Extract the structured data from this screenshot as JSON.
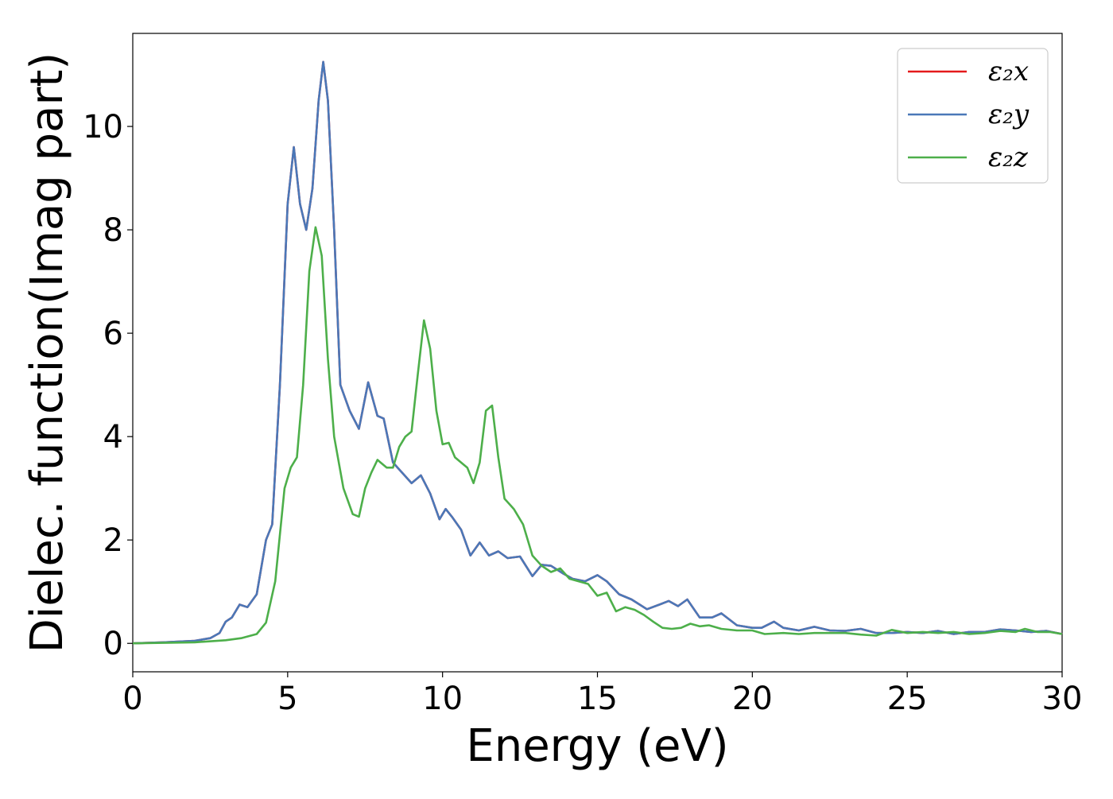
{
  "chart_data": {
    "type": "line",
    "xlabel": "Energy (eV)",
    "ylabel": "Dielec. function(Imag part)",
    "xlim": [
      0,
      30
    ],
    "ylim": [
      -0.55,
      11.8
    ],
    "xticks": [
      0,
      5,
      10,
      15,
      20,
      25,
      30
    ],
    "yticks": [
      0,
      2,
      4,
      6,
      8,
      10
    ],
    "grid": false,
    "legend_position": "top-right",
    "series": [
      {
        "name": "ε₂x",
        "color": "#e41a1c",
        "x": [
          0,
          1,
          2,
          2.5,
          2.8,
          3.0,
          3.2,
          3.45,
          3.7,
          4.0,
          4.3,
          4.5,
          4.75,
          5.0,
          5.2,
          5.4,
          5.6,
          5.8,
          6.0,
          6.15,
          6.3,
          6.5,
          6.7,
          7.0,
          7.3,
          7.6,
          7.9,
          8.1,
          8.4,
          8.7,
          9.0,
          9.3,
          9.6,
          9.9,
          10.1,
          10.3,
          10.6,
          10.9,
          11.2,
          11.5,
          11.8,
          12.1,
          12.5,
          12.9,
          13.2,
          13.5,
          13.9,
          14.2,
          14.6,
          15.0,
          15.3,
          15.7,
          16.1,
          16.6,
          17.0,
          17.3,
          17.6,
          17.9,
          18.3,
          18.7,
          19.0,
          19.5,
          20.0,
          20.3,
          20.7,
          21.0,
          21.5,
          22.0,
          22.5,
          23.0,
          23.5,
          24.0,
          24.5,
          25.0,
          25.5,
          26.0,
          26.5,
          27.0,
          27.5,
          28.0,
          28.5,
          29.0,
          29.5,
          30.0
        ],
        "values": [
          0.0,
          0.02,
          0.05,
          0.1,
          0.2,
          0.42,
          0.5,
          0.75,
          0.7,
          0.95,
          2.0,
          2.3,
          5.0,
          8.5,
          9.6,
          8.5,
          8.0,
          8.8,
          10.5,
          11.25,
          10.5,
          8.0,
          5.0,
          4.5,
          4.15,
          5.05,
          4.4,
          4.35,
          3.5,
          3.3,
          3.1,
          3.25,
          2.9,
          2.4,
          2.6,
          2.45,
          2.2,
          1.7,
          1.95,
          1.7,
          1.78,
          1.65,
          1.68,
          1.3,
          1.52,
          1.5,
          1.35,
          1.25,
          1.2,
          1.32,
          1.2,
          0.95,
          0.85,
          0.66,
          0.75,
          0.82,
          0.72,
          0.85,
          0.5,
          0.5,
          0.58,
          0.35,
          0.3,
          0.3,
          0.42,
          0.3,
          0.25,
          0.32,
          0.25,
          0.24,
          0.28,
          0.2,
          0.2,
          0.22,
          0.2,
          0.24,
          0.18,
          0.22,
          0.22,
          0.27,
          0.25,
          0.22,
          0.24,
          0.18
        ]
      },
      {
        "name": "ε₂y",
        "color": "#4a78b8",
        "x": [
          0,
          1,
          2,
          2.5,
          2.8,
          3.0,
          3.2,
          3.45,
          3.7,
          4.0,
          4.3,
          4.5,
          4.75,
          5.0,
          5.2,
          5.4,
          5.6,
          5.8,
          6.0,
          6.15,
          6.3,
          6.5,
          6.7,
          7.0,
          7.3,
          7.6,
          7.9,
          8.1,
          8.4,
          8.7,
          9.0,
          9.3,
          9.6,
          9.9,
          10.1,
          10.3,
          10.6,
          10.9,
          11.2,
          11.5,
          11.8,
          12.1,
          12.5,
          12.9,
          13.2,
          13.5,
          13.9,
          14.2,
          14.6,
          15.0,
          15.3,
          15.7,
          16.1,
          16.6,
          17.0,
          17.3,
          17.6,
          17.9,
          18.3,
          18.7,
          19.0,
          19.5,
          20.0,
          20.3,
          20.7,
          21.0,
          21.5,
          22.0,
          22.5,
          23.0,
          23.5,
          24.0,
          24.5,
          25.0,
          25.5,
          26.0,
          26.5,
          27.0,
          27.5,
          28.0,
          28.5,
          29.0,
          29.5,
          30.0
        ],
        "values": [
          0.0,
          0.02,
          0.05,
          0.1,
          0.2,
          0.42,
          0.5,
          0.75,
          0.7,
          0.95,
          2.0,
          2.3,
          5.0,
          8.5,
          9.6,
          8.5,
          8.0,
          8.8,
          10.5,
          11.25,
          10.5,
          8.0,
          5.0,
          4.5,
          4.15,
          5.05,
          4.4,
          4.35,
          3.5,
          3.3,
          3.1,
          3.25,
          2.9,
          2.4,
          2.6,
          2.45,
          2.2,
          1.7,
          1.95,
          1.7,
          1.78,
          1.65,
          1.68,
          1.3,
          1.52,
          1.5,
          1.35,
          1.25,
          1.2,
          1.32,
          1.2,
          0.95,
          0.85,
          0.66,
          0.75,
          0.82,
          0.72,
          0.85,
          0.5,
          0.5,
          0.58,
          0.35,
          0.3,
          0.3,
          0.42,
          0.3,
          0.25,
          0.32,
          0.25,
          0.24,
          0.28,
          0.2,
          0.2,
          0.22,
          0.2,
          0.24,
          0.18,
          0.22,
          0.22,
          0.27,
          0.25,
          0.22,
          0.24,
          0.18
        ]
      },
      {
        "name": "ε₂z",
        "color": "#4daf4a",
        "x": [
          0,
          2,
          3,
          3.5,
          4.0,
          4.3,
          4.6,
          4.9,
          5.1,
          5.3,
          5.5,
          5.7,
          5.9,
          6.1,
          6.3,
          6.5,
          6.8,
          7.1,
          7.3,
          7.5,
          7.7,
          7.9,
          8.0,
          8.2,
          8.4,
          8.6,
          8.8,
          9.0,
          9.2,
          9.4,
          9.6,
          9.8,
          10.0,
          10.2,
          10.4,
          10.6,
          10.8,
          11.0,
          11.2,
          11.4,
          11.6,
          11.8,
          12.0,
          12.3,
          12.6,
          12.9,
          13.2,
          13.5,
          13.8,
          14.1,
          14.4,
          14.7,
          15.0,
          15.3,
          15.6,
          15.9,
          16.2,
          16.5,
          16.8,
          17.1,
          17.4,
          17.7,
          18.0,
          18.3,
          18.6,
          19.0,
          19.5,
          20.0,
          20.4,
          21.0,
          21.5,
          22.0,
          22.5,
          23.0,
          23.5,
          24.0,
          24.5,
          25.0,
          25.5,
          26.0,
          26.5,
          27.0,
          27.5,
          28.0,
          28.5,
          28.8,
          29.2,
          29.6,
          30.0
        ],
        "values": [
          0.0,
          0.02,
          0.06,
          0.1,
          0.18,
          0.4,
          1.2,
          3.0,
          3.4,
          3.6,
          5.0,
          7.2,
          8.05,
          7.5,
          5.5,
          4.0,
          3.0,
          2.5,
          2.45,
          3.0,
          3.3,
          3.55,
          3.5,
          3.4,
          3.4,
          3.8,
          4.0,
          4.1,
          5.2,
          6.25,
          5.7,
          4.5,
          3.85,
          3.88,
          3.6,
          3.5,
          3.4,
          3.1,
          3.5,
          4.5,
          4.6,
          3.6,
          2.8,
          2.6,
          2.3,
          1.7,
          1.5,
          1.38,
          1.45,
          1.25,
          1.2,
          1.15,
          0.92,
          0.98,
          0.62,
          0.7,
          0.65,
          0.55,
          0.42,
          0.3,
          0.28,
          0.3,
          0.38,
          0.33,
          0.35,
          0.28,
          0.25,
          0.25,
          0.18,
          0.2,
          0.18,
          0.2,
          0.2,
          0.2,
          0.17,
          0.15,
          0.26,
          0.2,
          0.22,
          0.2,
          0.22,
          0.18,
          0.2,
          0.24,
          0.22,
          0.28,
          0.22,
          0.22,
          0.18
        ]
      }
    ]
  }
}
